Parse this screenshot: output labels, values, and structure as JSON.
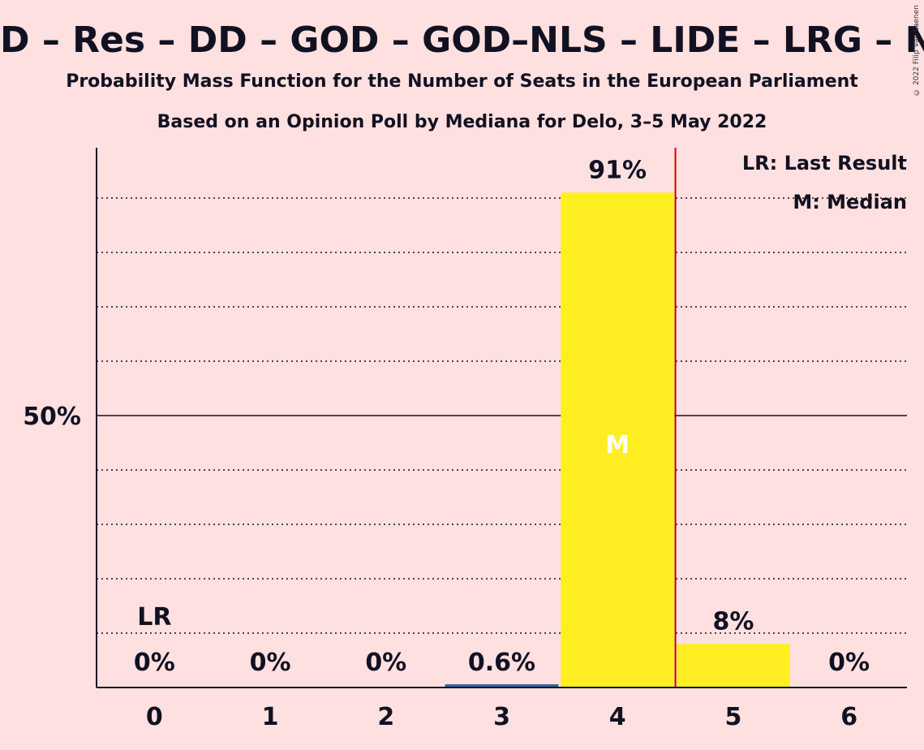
{
  "header": {
    "title": "D – Res – DD – GOD – GOD–NLS – LIDE – LRG – NLS –",
    "subtitle": "Probability Mass Function for the Number of Seats in the European Parliament",
    "source": "Based on an Opinion Poll by Mediana for Delo, 3–5 May 2022",
    "copyright": "© 2022 Filip Van Laenen"
  },
  "legend": {
    "last_result": "LR: Last Result",
    "median": "M: Median"
  },
  "colors": {
    "background": "#ffe0e0",
    "bar": "#ffee22",
    "small_bar": "#336699",
    "median_line": "#cc0000",
    "axis": "#111122"
  },
  "chart_data": {
    "type": "bar",
    "title": "Probability Mass Function for the Number of Seats in the European Parliament",
    "categories": [
      "0",
      "1",
      "2",
      "3",
      "4",
      "5",
      "6"
    ],
    "values": [
      0,
      0,
      0,
      0.6,
      91,
      8,
      0
    ],
    "value_labels": [
      "0%",
      "0%",
      "0%",
      "0.6%",
      "91%",
      "8%",
      "0%"
    ],
    "ytick_label": "50%",
    "ylim": [
      0,
      100
    ],
    "last_result_index": 0,
    "last_result_label": "LR",
    "median_index": 4,
    "median_label": "M",
    "grid": true,
    "legend_position": "top-right"
  }
}
